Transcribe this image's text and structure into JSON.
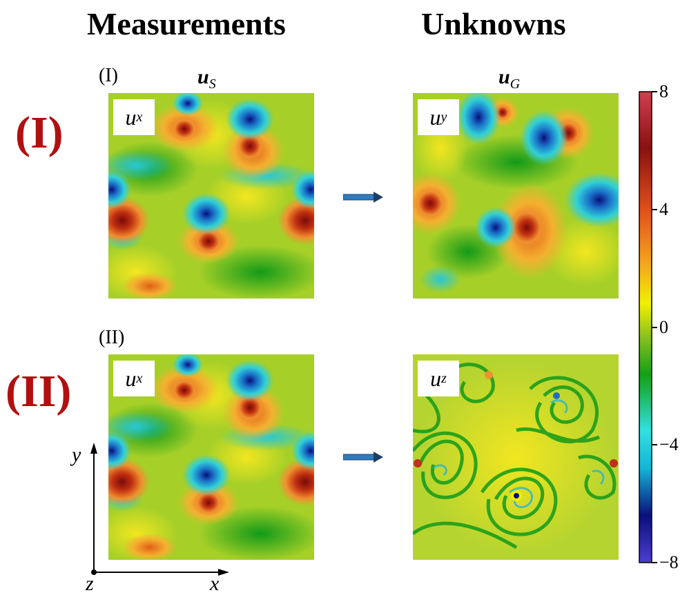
{
  "headers": {
    "left": "Measurements",
    "right": "Unknowns"
  },
  "rows": [
    {
      "big_label": "(I)",
      "small_label": "(I)",
      "component_left": "u",
      "component_left_sub": "x",
      "component_right": "u",
      "component_right_sub": "y"
    },
    {
      "big_label": "(II)",
      "small_label": "(II)",
      "component_left": "u",
      "component_left_sub": "x",
      "component_right": "u",
      "component_right_sub": "z"
    }
  ],
  "columns": {
    "left_vector": {
      "base": "u",
      "sub": "S"
    },
    "right_vector": {
      "base": "u",
      "sub": "G"
    }
  },
  "axes": {
    "x": "x",
    "y": "y",
    "z": "z"
  },
  "colorbar": {
    "ticks": [
      "8",
      "4",
      "0",
      "−4",
      "−8"
    ],
    "tick_values": [
      8,
      4,
      0,
      -4,
      -8
    ],
    "range": [
      -8,
      8
    ],
    "colormap": [
      "#4b3fd0",
      "#0a0f7a",
      "#14b4d6",
      "#32e0e0",
      "#12a014",
      "#8cc020",
      "#f0f000",
      "#f4a020",
      "#e0501a",
      "#8a1010",
      "#d04050"
    ]
  },
  "arrow_color": "#2f7bbf",
  "row_label_color": "#b11010"
}
